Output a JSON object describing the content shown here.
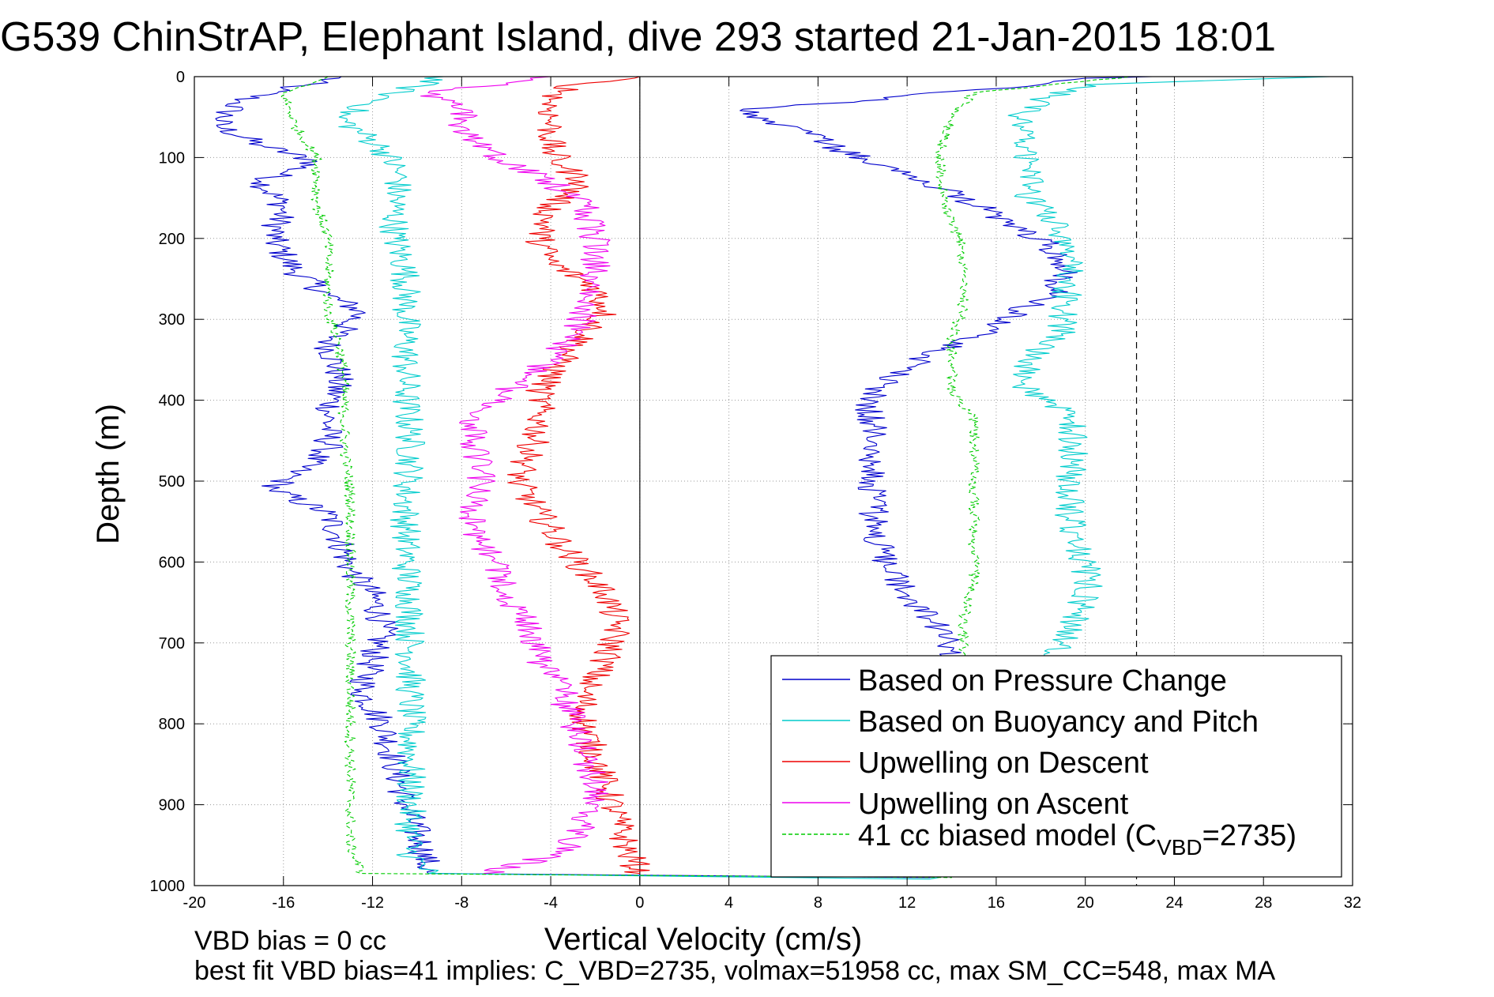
{
  "chart_data": {
    "type": "line",
    "title": "G539 ChinStrAP, Elephant Island, dive 293 started 21-Jan-2015 18:01",
    "xlabel": "Vertical Velocity (cm/s)",
    "ylabel": "Depth (m)",
    "xlim": [
      -20,
      32
    ],
    "ylim": [
      0,
      1000
    ],
    "y_reversed": true,
    "grid": true,
    "legend_position": "lower-right",
    "x_ticks": [
      "-20",
      "-16",
      "-12",
      "-8",
      "-4",
      "0",
      "4",
      "8",
      "12",
      "16",
      "20",
      "24",
      "28",
      "32"
    ],
    "y_ticks": [
      "0",
      "100",
      "200",
      "300",
      "400",
      "500",
      "600",
      "700",
      "800",
      "900",
      "1000"
    ],
    "reference_lines": [
      {
        "axis": "x",
        "value": 0,
        "style": "solid"
      },
      {
        "axis": "x",
        "value": 22.3,
        "style": "dashed"
      }
    ],
    "series": [
      {
        "name": "Based on Pressure Change",
        "color": "#0000cc",
        "style": "solid",
        "points": [
          [
            -13.4,
            0
          ],
          [
            -16,
            15
          ],
          [
            -18,
            30
          ],
          [
            -19,
            60
          ],
          [
            -17,
            85
          ],
          [
            -14.5,
            105
          ],
          [
            -17,
            130
          ],
          [
            -16,
            160
          ],
          [
            -16.5,
            200
          ],
          [
            -15.5,
            240
          ],
          [
            -14,
            270
          ],
          [
            -12.5,
            290
          ],
          [
            -14,
            330
          ],
          [
            -13.5,
            370
          ],
          [
            -14,
            420
          ],
          [
            -14,
            460
          ],
          [
            -15.5,
            490
          ],
          [
            -16.5,
            510
          ],
          [
            -14,
            540
          ],
          [
            -13.5,
            570
          ],
          [
            -13,
            610
          ],
          [
            -12,
            640
          ],
          [
            -11.5,
            680
          ],
          [
            -12,
            720
          ],
          [
            -12.5,
            760
          ],
          [
            -11.5,
            800
          ],
          [
            -11,
            850
          ],
          [
            -10.5,
            900
          ],
          [
            -9.8,
            950
          ],
          [
            -9.5,
            985
          ],
          [
            13,
            990
          ],
          [
            13.8,
            700
          ],
          [
            13,
            670
          ],
          [
            12,
            640
          ],
          [
            11,
            600
          ],
          [
            10.5,
            560
          ],
          [
            10.5,
            520
          ],
          [
            10.5,
            480
          ],
          [
            10.5,
            440
          ],
          [
            10.3,
            400
          ],
          [
            11,
            380
          ],
          [
            12,
            360
          ],
          [
            13,
            345
          ],
          [
            14.5,
            330
          ],
          [
            16,
            310
          ],
          [
            17,
            290
          ],
          [
            18.5,
            270
          ],
          [
            19,
            240
          ],
          [
            18.5,
            210
          ],
          [
            17,
            190
          ],
          [
            16,
            170
          ],
          [
            14.5,
            150
          ],
          [
            13,
            130
          ],
          [
            11,
            110
          ],
          [
            9,
            90
          ],
          [
            6.5,
            60
          ],
          [
            4.5,
            42
          ],
          [
            7,
            35
          ],
          [
            10,
            30
          ],
          [
            13,
            20
          ],
          [
            18,
            10
          ],
          [
            20,
            2
          ],
          [
            23,
            0
          ]
        ]
      },
      {
        "name": "Based on Buoyancy and Pitch",
        "color": "#00cccc",
        "style": "solid",
        "points": [
          [
            -8.8,
            0
          ],
          [
            -11,
            20
          ],
          [
            -13.5,
            50
          ],
          [
            -11.5,
            90
          ],
          [
            -10.8,
            120
          ],
          [
            -11,
            160
          ],
          [
            -11,
            200
          ],
          [
            -10.5,
            240
          ],
          [
            -10.5,
            280
          ],
          [
            -10.5,
            320
          ],
          [
            -10.5,
            360
          ],
          [
            -10.5,
            400
          ],
          [
            -10.3,
            440
          ],
          [
            -10.3,
            480
          ],
          [
            -10.5,
            520
          ],
          [
            -10.5,
            560
          ],
          [
            -10.5,
            600
          ],
          [
            -10.3,
            640
          ],
          [
            -10.3,
            680
          ],
          [
            -10.3,
            720
          ],
          [
            -10.3,
            760
          ],
          [
            -10.3,
            800
          ],
          [
            -10.3,
            840
          ],
          [
            -10.3,
            880
          ],
          [
            -10.3,
            920
          ],
          [
            -10.3,
            960
          ],
          [
            -9.5,
            985
          ],
          [
            13,
            992
          ],
          [
            19,
            700
          ],
          [
            19.8,
            660
          ],
          [
            20.2,
            620
          ],
          [
            19.5,
            580
          ],
          [
            19.3,
            540
          ],
          [
            19.3,
            500
          ],
          [
            19.5,
            460
          ],
          [
            19.5,
            420
          ],
          [
            17.3,
            390
          ],
          [
            17.3,
            350
          ],
          [
            19,
            320
          ],
          [
            19,
            290
          ],
          [
            19.3,
            250
          ],
          [
            19.5,
            210
          ],
          [
            18.5,
            180
          ],
          [
            17.5,
            150
          ],
          [
            17.5,
            110
          ],
          [
            17.3,
            80
          ],
          [
            17,
            50
          ],
          [
            18,
            30
          ],
          [
            20,
            10
          ],
          [
            31,
            0
          ]
        ]
      },
      {
        "name": "Upwelling on Descent",
        "color": "#ee0000",
        "style": "solid",
        "points": [
          [
            0,
            0
          ],
          [
            -3,
            10
          ],
          [
            -4,
            30
          ],
          [
            -4,
            60
          ],
          [
            -4,
            90
          ],
          [
            -3.5,
            110
          ],
          [
            -2.5,
            130
          ],
          [
            -4,
            160
          ],
          [
            -4.5,
            200
          ],
          [
            -4,
            230
          ],
          [
            -2,
            260
          ],
          [
            -1.5,
            290
          ],
          [
            -2.5,
            320
          ],
          [
            -3.5,
            350
          ],
          [
            -4.5,
            390
          ],
          [
            -4.5,
            430
          ],
          [
            -5,
            470
          ],
          [
            -5.5,
            500
          ],
          [
            -4.5,
            540
          ],
          [
            -3.5,
            580
          ],
          [
            -2.5,
            610
          ],
          [
            -1.5,
            640
          ],
          [
            -1,
            680
          ],
          [
            -1.5,
            720
          ],
          [
            -2.5,
            760
          ],
          [
            -2.5,
            800
          ],
          [
            -2,
            840
          ],
          [
            -1.5,
            880
          ],
          [
            -1,
            920
          ],
          [
            -0.5,
            960
          ],
          [
            0,
            985
          ]
        ]
      },
      {
        "name": "Upwelling on Ascent",
        "color": "#ee00ee",
        "style": "solid",
        "points": [
          [
            -7,
            985
          ],
          [
            -3.5,
            960
          ],
          [
            -2.5,
            920
          ],
          [
            -2,
            880
          ],
          [
            -2.5,
            840
          ],
          [
            -3,
            800
          ],
          [
            -3.5,
            760
          ],
          [
            -4.5,
            720
          ],
          [
            -5,
            680
          ],
          [
            -6,
            640
          ],
          [
            -6.5,
            600
          ],
          [
            -7.5,
            560
          ],
          [
            -7.5,
            520
          ],
          [
            -7,
            490
          ],
          [
            -7.5,
            460
          ],
          [
            -7.5,
            420
          ],
          [
            -6.5,
            400
          ],
          [
            -5.5,
            380
          ],
          [
            -4,
            350
          ],
          [
            -3,
            320
          ],
          [
            -2.5,
            290
          ],
          [
            -2,
            250
          ],
          [
            -2,
            200
          ],
          [
            -2.5,
            160
          ],
          [
            -4,
            130
          ],
          [
            -6.5,
            100
          ],
          [
            -8,
            70
          ],
          [
            -8,
            40
          ],
          [
            -9.5,
            20
          ],
          [
            -6,
            8
          ],
          [
            -4,
            0
          ]
        ]
      },
      {
        "name": "41 cc biased model (C_VBD=2735)",
        "color": "#00cc00",
        "style": "dashed",
        "points": [
          [
            -14,
            0
          ],
          [
            -16,
            20
          ],
          [
            -15.5,
            60
          ],
          [
            -14.5,
            100
          ],
          [
            -14.5,
            160
          ],
          [
            -14,
            200
          ],
          [
            -14,
            250
          ],
          [
            -14,
            290
          ],
          [
            -13.5,
            330
          ],
          [
            -13.3,
            370
          ],
          [
            -13.3,
            420
          ],
          [
            -13.2,
            470
          ],
          [
            -13,
            520
          ],
          [
            -13,
            560
          ],
          [
            -13,
            600
          ],
          [
            -13,
            650
          ],
          [
            -13,
            700
          ],
          [
            -13,
            750
          ],
          [
            -13,
            800
          ],
          [
            -13,
            850
          ],
          [
            -13,
            900
          ],
          [
            -13,
            950
          ],
          [
            -12.5,
            985
          ],
          [
            14,
            990
          ],
          [
            14.5,
            710
          ],
          [
            14.5,
            670
          ],
          [
            15,
            630
          ],
          [
            15,
            590
          ],
          [
            15,
            550
          ],
          [
            15,
            500
          ],
          [
            15,
            460
          ],
          [
            15,
            420
          ],
          [
            14,
            390
          ],
          [
            14,
            350
          ],
          [
            14,
            320
          ],
          [
            14.5,
            290
          ],
          [
            14.5,
            250
          ],
          [
            14.5,
            210
          ],
          [
            13.8,
            170
          ],
          [
            13.5,
            130
          ],
          [
            13.5,
            90
          ],
          [
            14,
            50
          ],
          [
            15,
            20
          ],
          [
            22,
            0
          ]
        ]
      }
    ],
    "legend": [
      {
        "label": "Based on Pressure Change",
        "color": "#0000cc",
        "dashed": false
      },
      {
        "label": "Based on Buoyancy and Pitch",
        "color": "#00cccc",
        "dashed": false
      },
      {
        "label": "Upwelling on Descent",
        "color": "#ee0000",
        "dashed": false
      },
      {
        "label": "Upwelling on Ascent",
        "color": "#ee00ee",
        "dashed": false
      },
      {
        "label_main": "41 cc biased model (C",
        "label_sub": "VBD",
        "label_tail": "=2735)",
        "color": "#00cc00",
        "dashed": true
      }
    ],
    "annotations": [
      "VBD bias = 0 cc",
      "best fit VBD bias=41 implies: C_VBD=2735, volmax=51958 cc, max SM_CC=548, max MA"
    ]
  }
}
